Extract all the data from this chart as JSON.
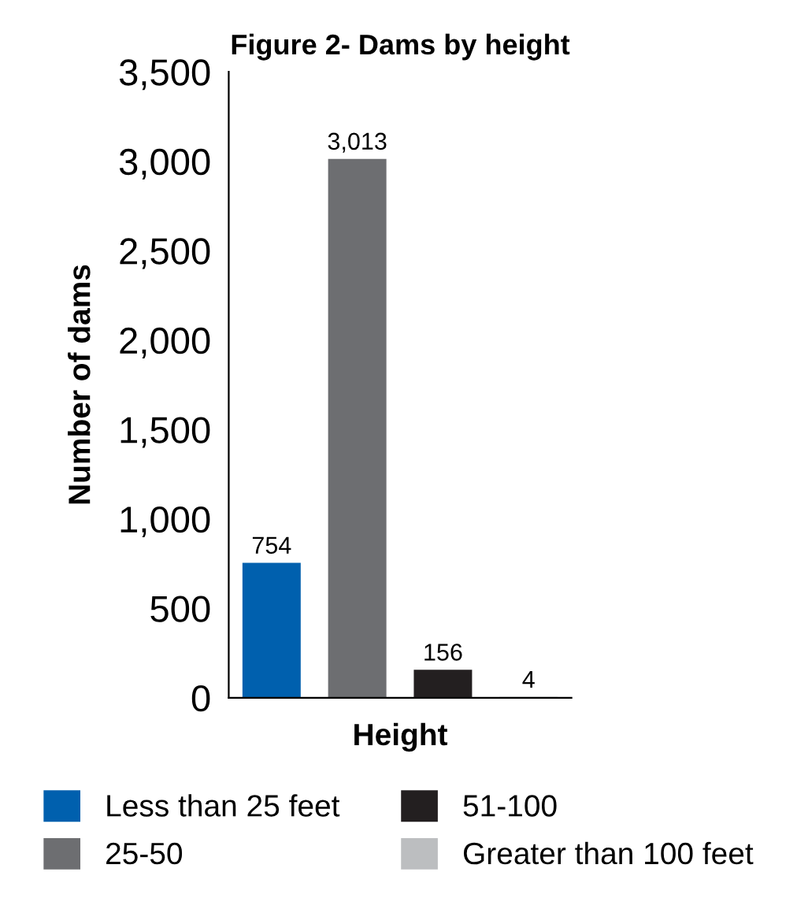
{
  "chart_data": {
    "type": "bar",
    "title": "Figure 2- Dams by height",
    "xlabel": "Height",
    "ylabel": "Number of dams",
    "categories": [
      null,
      null,
      null,
      null
    ],
    "series": [
      {
        "name": "Less than 25 feet",
        "color": "#0060ae",
        "values": [
          754,
          null,
          null,
          null
        ],
        "value_labels": [
          "754",
          null,
          null,
          null
        ]
      },
      {
        "name": "25-50",
        "color": "#6d6e71",
        "values": [
          null,
          3013,
          null,
          null
        ],
        "value_labels": [
          null,
          "3,013",
          null,
          null
        ]
      },
      {
        "name": "51-100",
        "color": "#231f20",
        "values": [
          null,
          null,
          156,
          null
        ],
        "value_labels": [
          null,
          null,
          "156",
          null
        ]
      },
      {
        "name": "Greater than 100 feet",
        "color": "#bcbec0",
        "values": [
          null,
          null,
          null,
          4
        ],
        "value_labels": [
          null,
          null,
          null,
          "4"
        ]
      }
    ],
    "ylim": [
      0,
      3500
    ],
    "yticks": [
      {
        "value": 0,
        "label": "0"
      },
      {
        "value": 500,
        "label": "500"
      },
      {
        "value": 1000,
        "label": "1,000"
      },
      {
        "value": 1500,
        "label": "1,500"
      },
      {
        "value": 2000,
        "label": "2,000"
      },
      {
        "value": 2500,
        "label": "2,500"
      },
      {
        "value": 3000,
        "label": "3,000"
      },
      {
        "value": 3500,
        "label": "3,500"
      }
    ],
    "tick_labels": "y",
    "grid": false,
    "legend": "bottom"
  }
}
